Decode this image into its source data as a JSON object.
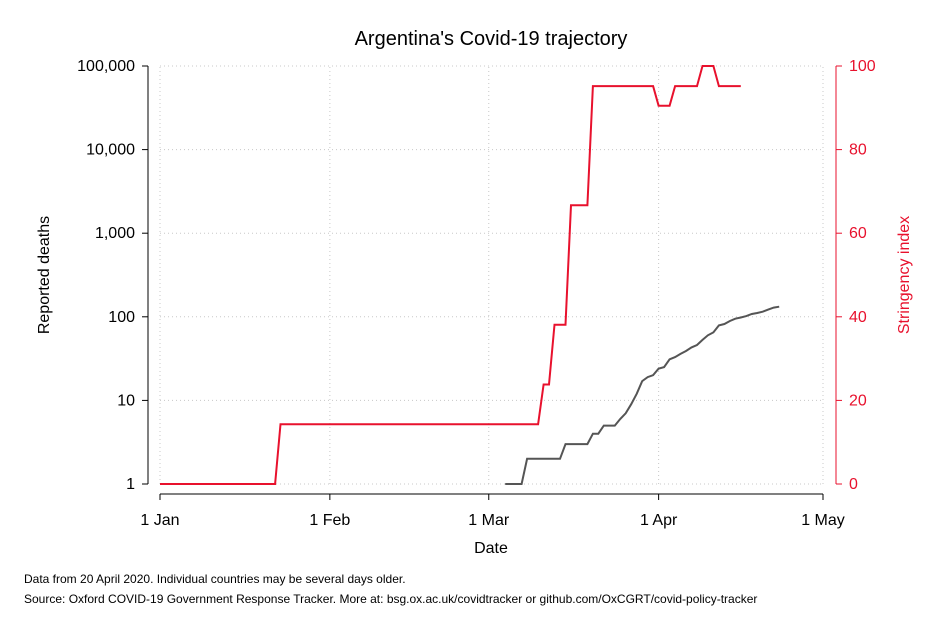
{
  "chart_data": {
    "type": "line",
    "title": "Argentina's Covid-19 trajectory",
    "xlabel": "Date",
    "ylabel_left": "Reported deaths",
    "ylabel_right": "Stringency index",
    "x_ticks": [
      "1 Jan",
      "1 Feb",
      "1 Mar",
      "1 Apr",
      "1 May"
    ],
    "x_tick_days": [
      0,
      31,
      60,
      91,
      121
    ],
    "xlim": [
      0,
      121
    ],
    "y_left_scale": "log",
    "y_left_ticks": [
      {
        "value": 1,
        "label": "1"
      },
      {
        "value": 10,
        "label": "10"
      },
      {
        "value": 100,
        "label": "100"
      },
      {
        "value": 1000,
        "label": "1,000"
      },
      {
        "value": 10000,
        "label": "10,000"
      },
      {
        "value": 100000,
        "label": "100,000"
      }
    ],
    "y_left_lim": [
      1,
      100000
    ],
    "y_right_ticks": [
      0,
      20,
      40,
      60,
      80,
      100
    ],
    "y_right_lim": [
      0,
      100
    ],
    "grid": true,
    "colors": {
      "deaths": "#555555",
      "stringency": "#e8112d",
      "grid": "#c8c8c8",
      "axis": "#000000"
    },
    "series": [
      {
        "key": "deaths",
        "axis": "left",
        "points": [
          [
            63,
            1
          ],
          [
            66,
            1
          ],
          [
            67,
            2
          ],
          [
            73,
            2
          ],
          [
            74,
            3
          ],
          [
            78,
            3
          ],
          [
            79,
            4
          ],
          [
            80,
            4
          ],
          [
            81,
            5
          ],
          [
            83,
            5
          ],
          [
            84,
            6
          ],
          [
            85,
            7
          ],
          [
            86,
            9
          ],
          [
            87,
            12
          ],
          [
            88,
            17
          ],
          [
            89,
            19
          ],
          [
            90,
            20
          ],
          [
            91,
            24
          ],
          [
            92,
            25
          ],
          [
            93,
            31
          ],
          [
            94,
            33
          ],
          [
            95,
            36
          ],
          [
            96,
            39
          ],
          [
            97,
            43
          ],
          [
            98,
            46
          ],
          [
            99,
            53
          ],
          [
            100,
            60
          ],
          [
            101,
            65
          ],
          [
            102,
            79
          ],
          [
            103,
            82
          ],
          [
            104,
            89
          ],
          [
            105,
            95
          ],
          [
            106,
            98
          ],
          [
            107,
            102
          ],
          [
            108,
            108
          ],
          [
            109,
            111
          ],
          [
            110,
            115
          ],
          [
            111,
            122
          ],
          [
            112,
            129
          ],
          [
            113,
            132
          ]
        ]
      },
      {
        "key": "stringency",
        "axis": "right",
        "points": [
          [
            0,
            0
          ],
          [
            21,
            0
          ],
          [
            22,
            14.3
          ],
          [
            69,
            14.3
          ],
          [
            70,
            23.8
          ],
          [
            71,
            23.8
          ],
          [
            72,
            38.1
          ],
          [
            74,
            38.1
          ],
          [
            75,
            66.7
          ],
          [
            78,
            66.7
          ],
          [
            79,
            95.2
          ],
          [
            90,
            95.2
          ],
          [
            91,
            90.5
          ],
          [
            93,
            90.5
          ],
          [
            94,
            95.2
          ],
          [
            98,
            95.2
          ],
          [
            99,
            100
          ],
          [
            101,
            100
          ],
          [
            102,
            95.2
          ],
          [
            106,
            95.2
          ]
        ]
      }
    ]
  },
  "notes": [
    "Data from 20 April 2020. Individual countries may be several days older.",
    "Source: Oxford COVID-19 Government Response Tracker. More at: bsg.ox.ac.uk/covidtracker or github.com/OxCGRT/covid-policy-tracker"
  ]
}
